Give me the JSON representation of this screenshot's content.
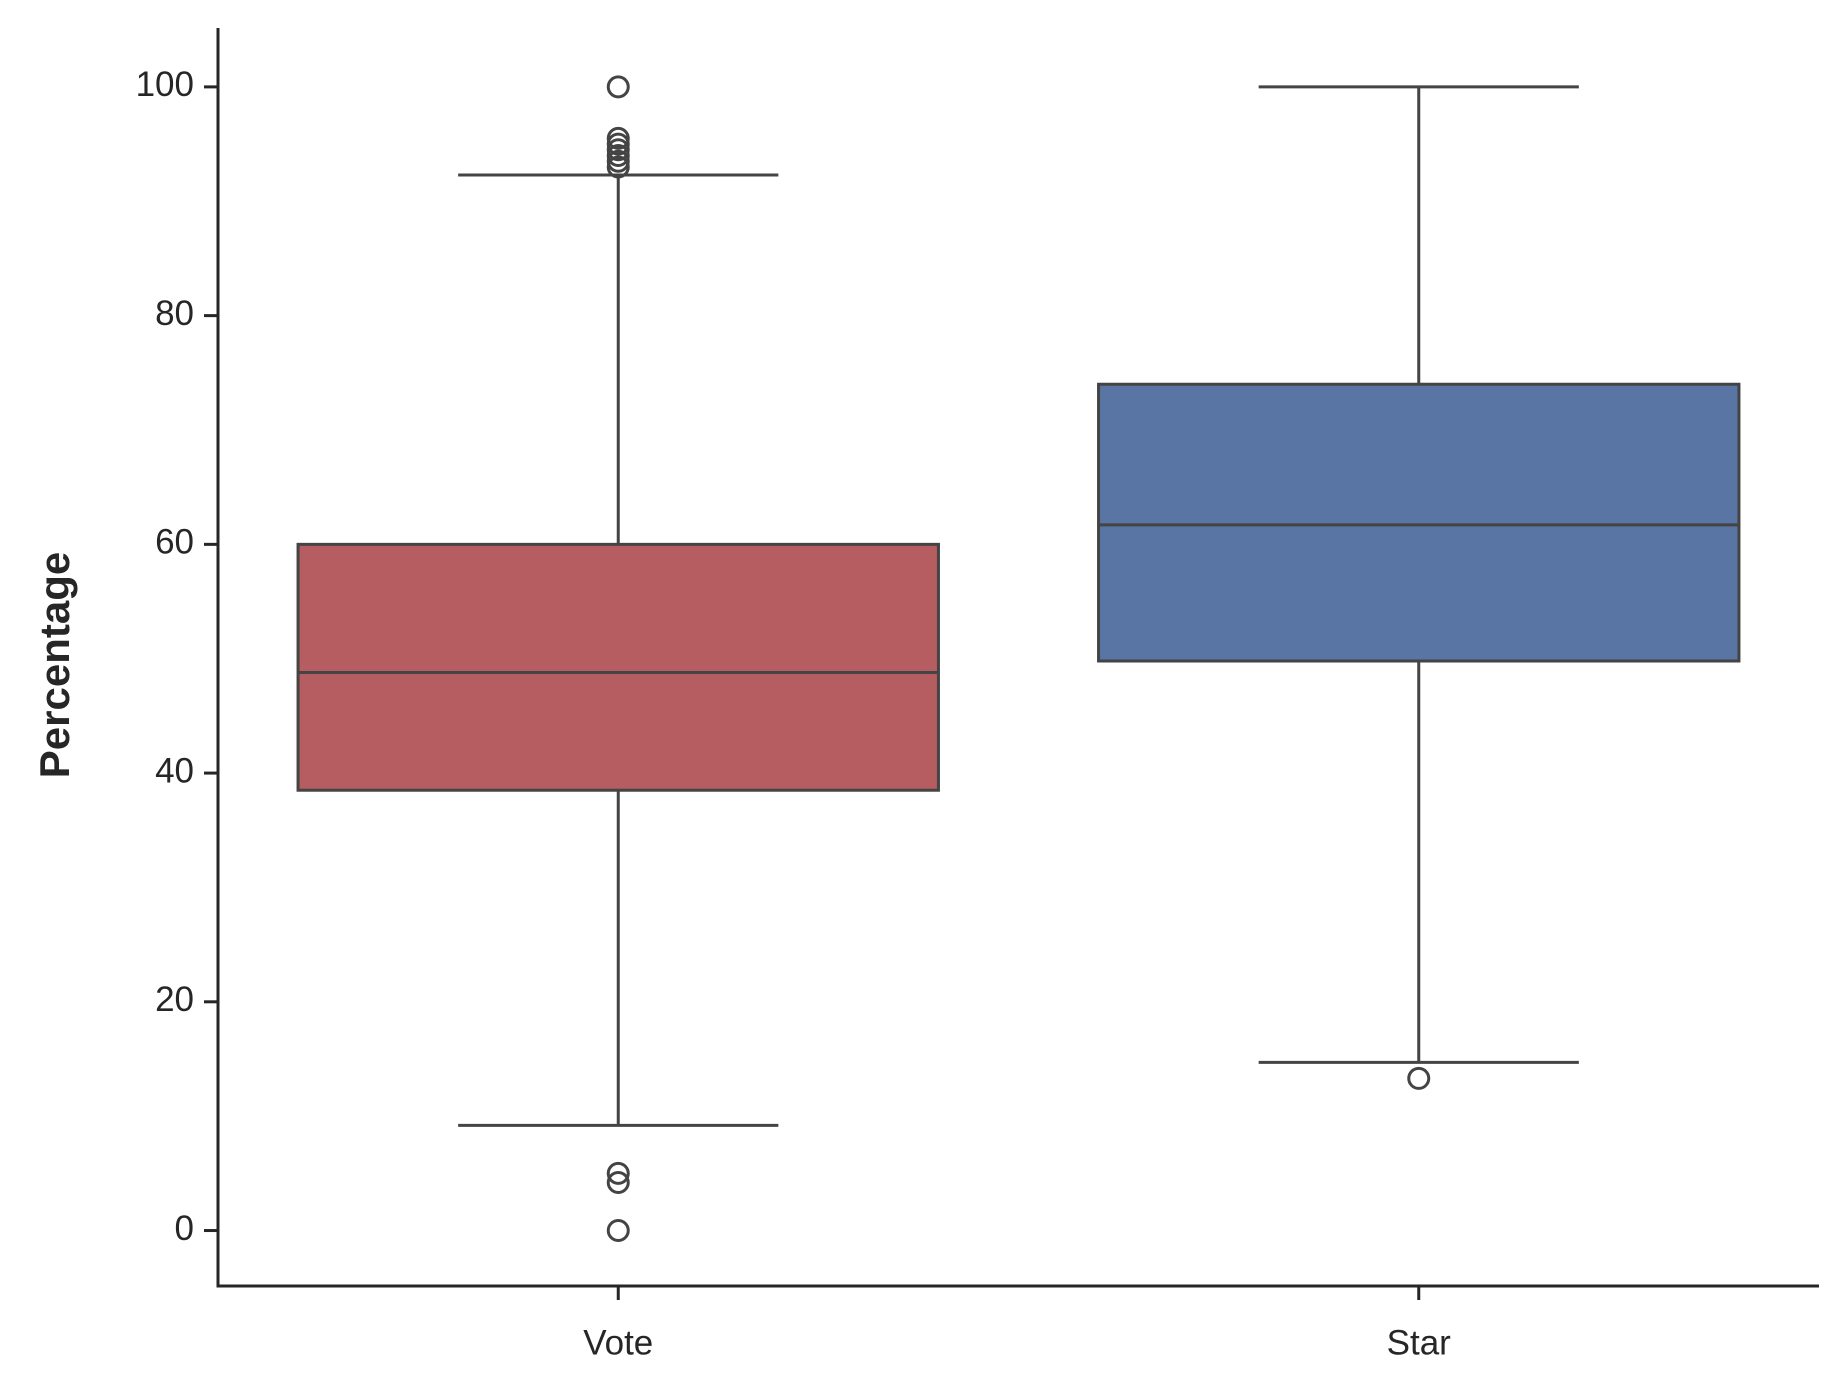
{
  "chart_data": {
    "type": "box",
    "ylabel": "Percentage",
    "categories": [
      "Vote",
      "Star"
    ],
    "colors": [
      "#b55d60",
      "#5975a4"
    ],
    "stats": [
      {
        "whislo": 9.2,
        "q1": 38.5,
        "med": 48.8,
        "q3": 60,
        "whishi": 92.3,
        "fliers": [
          100,
          95.5,
          95,
          94.5,
          94,
          93.5,
          93,
          5,
          4.2,
          0
        ]
      },
      {
        "whislo": 14.7,
        "q1": 49.8,
        "med": 61.7,
        "q3": 74,
        "whishi": 100,
        "fliers": [
          13.3
        ]
      }
    ],
    "ylim": [
      -4.85,
      105.15
    ],
    "yticks": [
      0,
      20,
      40,
      60,
      80,
      100
    ],
    "grid": false
  }
}
